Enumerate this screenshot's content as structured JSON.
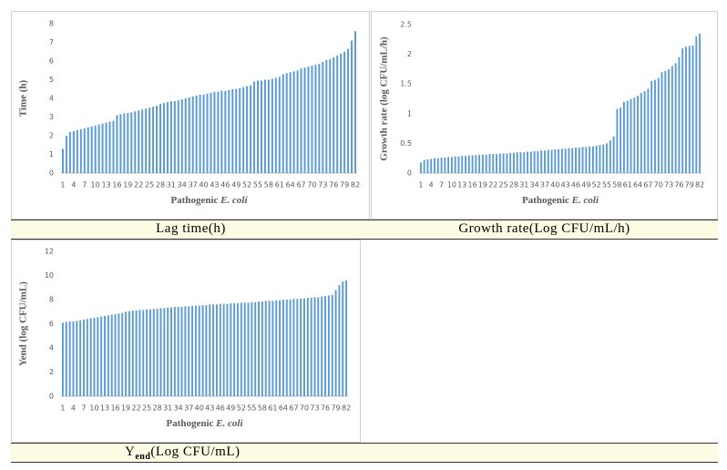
{
  "chart_data": [
    {
      "type": "bar",
      "caption": "Lag time(h)",
      "y_label": "Time (h)",
      "x_label": [
        "Pathogenic",
        "E. coli"
      ],
      "color": "#5b9bd5",
      "grid": false,
      "ylim": [
        0,
        8
      ],
      "yticks": [
        0,
        1,
        2,
        3,
        4,
        5,
        6,
        7,
        8
      ],
      "categories": [
        1,
        null,
        null,
        4,
        null,
        null,
        7,
        null,
        null,
        10,
        null,
        null,
        13,
        null,
        null,
        16,
        null,
        null,
        19,
        null,
        null,
        22,
        null,
        null,
        25,
        null,
        null,
        28,
        null,
        null,
        31,
        null,
        null,
        34,
        null,
        null,
        37,
        null,
        null,
        40,
        null,
        null,
        43,
        null,
        null,
        46,
        null,
        null,
        49,
        null,
        null,
        52,
        null,
        null,
        55,
        null,
        null,
        58,
        null,
        null,
        61,
        null,
        null,
        64,
        null,
        null,
        67,
        null,
        null,
        70,
        null,
        null,
        73,
        null,
        null,
        76,
        null,
        null,
        79,
        null,
        null,
        82
      ],
      "values": [
        1.3,
        2.0,
        2.2,
        2.25,
        2.3,
        2.35,
        2.4,
        2.45,
        2.5,
        2.55,
        2.6,
        2.65,
        2.7,
        2.75,
        2.8,
        3.1,
        3.15,
        3.2,
        3.22,
        3.25,
        3.3,
        3.35,
        3.4,
        3.45,
        3.5,
        3.55,
        3.6,
        3.7,
        3.75,
        3.8,
        3.85,
        3.85,
        3.9,
        3.95,
        4.0,
        4.05,
        4.1,
        4.15,
        4.2,
        4.2,
        4.25,
        4.3,
        4.35,
        4.35,
        4.4,
        4.4,
        4.45,
        4.5,
        4.5,
        4.55,
        4.6,
        4.65,
        4.7,
        4.9,
        4.95,
        4.95,
        5.0,
        5.0,
        5.05,
        5.1,
        5.15,
        5.3,
        5.35,
        5.4,
        5.45,
        5.5,
        5.6,
        5.65,
        5.7,
        5.75,
        5.8,
        5.85,
        5.95,
        6.05,
        6.1,
        6.2,
        6.3,
        6.4,
        6.5,
        6.65,
        7.1,
        7.6
      ]
    },
    {
      "type": "bar",
      "caption": "Growth rate(Log CFU/mL/h)",
      "y_label": "Growth rate (log CFU/mL/h)",
      "x_label": [
        "Pathogenic",
        "E. coli"
      ],
      "color": "#5b9bd5",
      "grid": false,
      "ylim": [
        0,
        2.5
      ],
      "yticks": [
        0,
        0.5,
        1,
        1.5,
        2,
        2.5
      ],
      "categories": [
        1,
        null,
        null,
        4,
        null,
        null,
        7,
        null,
        null,
        10,
        null,
        null,
        13,
        null,
        null,
        16,
        null,
        null,
        19,
        null,
        null,
        22,
        null,
        null,
        25,
        null,
        null,
        28,
        null,
        null,
        31,
        null,
        null,
        34,
        null,
        null,
        37,
        null,
        null,
        40,
        null,
        null,
        43,
        null,
        null,
        46,
        null,
        null,
        49,
        null,
        null,
        52,
        null,
        null,
        55,
        null,
        null,
        58,
        null,
        null,
        61,
        null,
        null,
        64,
        null,
        null,
        67,
        null,
        null,
        70,
        null,
        null,
        73,
        null,
        null,
        76,
        null,
        null,
        79,
        null,
        null,
        82
      ],
      "values": [
        0.18,
        0.22,
        0.23,
        0.24,
        0.25,
        0.25,
        0.26,
        0.26,
        0.27,
        0.27,
        0.28,
        0.28,
        0.29,
        0.29,
        0.3,
        0.3,
        0.3,
        0.31,
        0.31,
        0.31,
        0.32,
        0.32,
        0.32,
        0.33,
        0.33,
        0.33,
        0.34,
        0.34,
        0.35,
        0.35,
        0.35,
        0.36,
        0.36,
        0.37,
        0.37,
        0.38,
        0.38,
        0.39,
        0.39,
        0.4,
        0.4,
        0.41,
        0.41,
        0.42,
        0.42,
        0.43,
        0.43,
        0.44,
        0.44,
        0.45,
        0.45,
        0.46,
        0.47,
        0.48,
        0.5,
        0.55,
        0.62,
        1.08,
        1.1,
        1.2,
        1.22,
        1.25,
        1.27,
        1.3,
        1.35,
        1.38,
        1.42,
        1.55,
        1.57,
        1.6,
        1.7,
        1.72,
        1.75,
        1.8,
        1.85,
        1.95,
        2.1,
        2.13,
        2.14,
        2.15,
        2.3,
        2.35
      ]
    },
    {
      "type": "bar",
      "caption": "Y",
      "caption_sub": "end",
      "caption_rest": "(Log CFU/mL)",
      "y_label": "Yend (log CFU/mL)",
      "x_label": [
        "Pathogenic",
        "E. coli"
      ],
      "color": "#5b9bd5",
      "grid": false,
      "ylim": [
        0,
        12
      ],
      "yticks": [
        0,
        2,
        4,
        6,
        8,
        10,
        12
      ],
      "categories": [
        1,
        null,
        null,
        4,
        null,
        null,
        7,
        null,
        null,
        10,
        null,
        null,
        13,
        null,
        null,
        16,
        null,
        null,
        19,
        null,
        null,
        22,
        null,
        null,
        25,
        null,
        null,
        28,
        null,
        null,
        31,
        null,
        null,
        34,
        null,
        null,
        37,
        null,
        null,
        40,
        null,
        null,
        43,
        null,
        null,
        46,
        null,
        null,
        49,
        null,
        null,
        52,
        null,
        null,
        55,
        null,
        null,
        58,
        null,
        null,
        61,
        null,
        null,
        64,
        null,
        null,
        67,
        null,
        null,
        70,
        null,
        null,
        73,
        null,
        null,
        76,
        null,
        null,
        79,
        null,
        null,
        82
      ],
      "values": [
        6.1,
        6.15,
        6.2,
        6.2,
        6.25,
        6.3,
        6.35,
        6.4,
        6.45,
        6.5,
        6.55,
        6.6,
        6.65,
        6.7,
        6.75,
        6.8,
        6.85,
        6.9,
        7.0,
        7.05,
        7.1,
        7.1,
        7.15,
        7.15,
        7.2,
        7.2,
        7.25,
        7.25,
        7.3,
        7.3,
        7.35,
        7.35,
        7.4,
        7.4,
        7.4,
        7.45,
        7.45,
        7.5,
        7.5,
        7.5,
        7.55,
        7.55,
        7.6,
        7.6,
        7.6,
        7.65,
        7.65,
        7.65,
        7.7,
        7.7,
        7.7,
        7.75,
        7.75,
        7.75,
        7.8,
        7.8,
        7.85,
        7.85,
        7.9,
        7.9,
        7.9,
        7.95,
        7.95,
        8.0,
        8.0,
        8.0,
        8.05,
        8.05,
        8.1,
        8.1,
        8.15,
        8.15,
        8.2,
        8.2,
        8.25,
        8.3,
        8.35,
        8.4,
        8.8,
        9.2,
        9.5,
        9.6
      ]
    }
  ]
}
